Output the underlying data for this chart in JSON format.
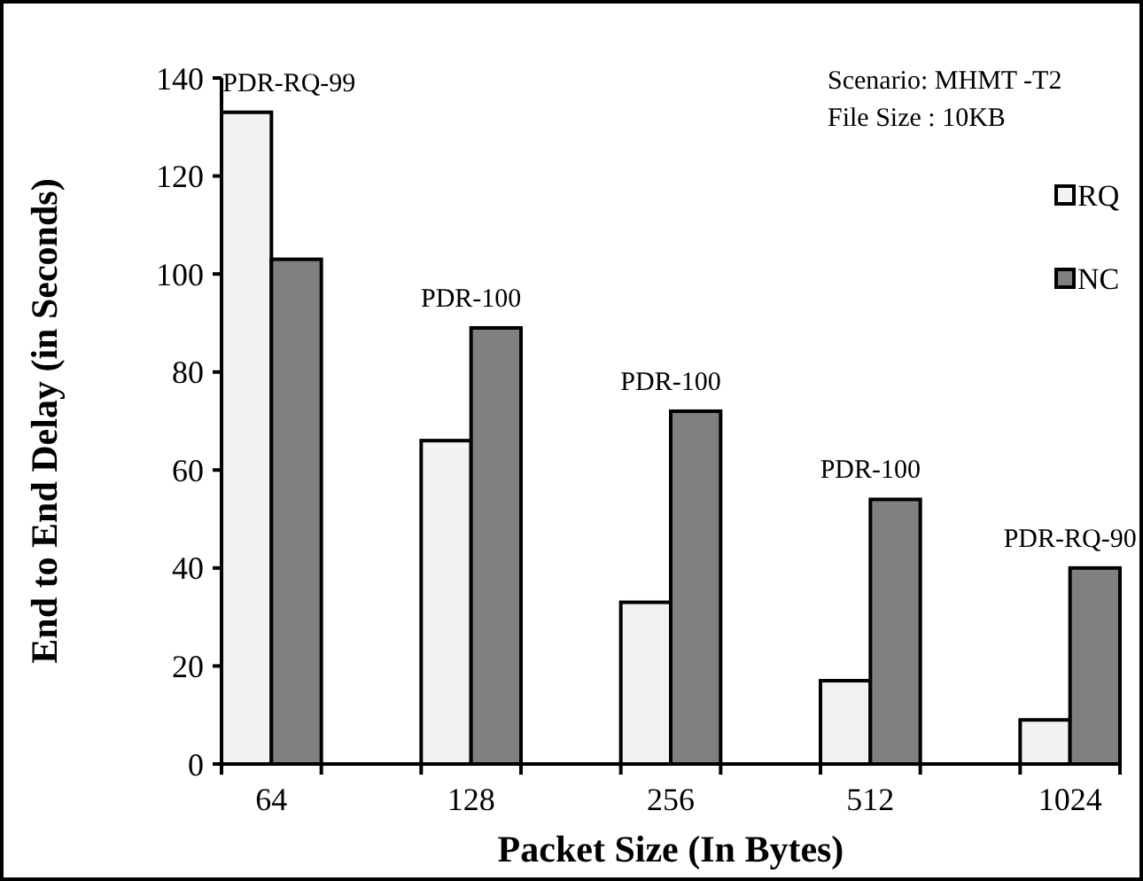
{
  "chart_data": {
    "type": "bar",
    "xlabel": "Packet Size (In Bytes)",
    "ylabel": "End to End Delay (in Seconds)",
    "categories": [
      "64",
      "128",
      "256",
      "512",
      "1024"
    ],
    "series": [
      {
        "name": "RQ",
        "color": "#f2f2f2",
        "values": [
          133,
          66,
          33,
          17,
          9
        ]
      },
      {
        "name": "NC",
        "color": "#808080",
        "values": [
          103,
          89,
          72,
          54,
          40
        ]
      }
    ],
    "ylim": [
      0,
      140
    ],
    "yticks": [
      0,
      20,
      40,
      60,
      80,
      100,
      120,
      140
    ],
    "grid": false,
    "legend": "right",
    "annotations": [
      "Scenario: MHMT -T2",
      "File Size : 10KB",
      "PDR-RQ-99",
      "PDR-100",
      "PDR-100",
      "PDR-100",
      "PDR-RQ-90"
    ]
  }
}
